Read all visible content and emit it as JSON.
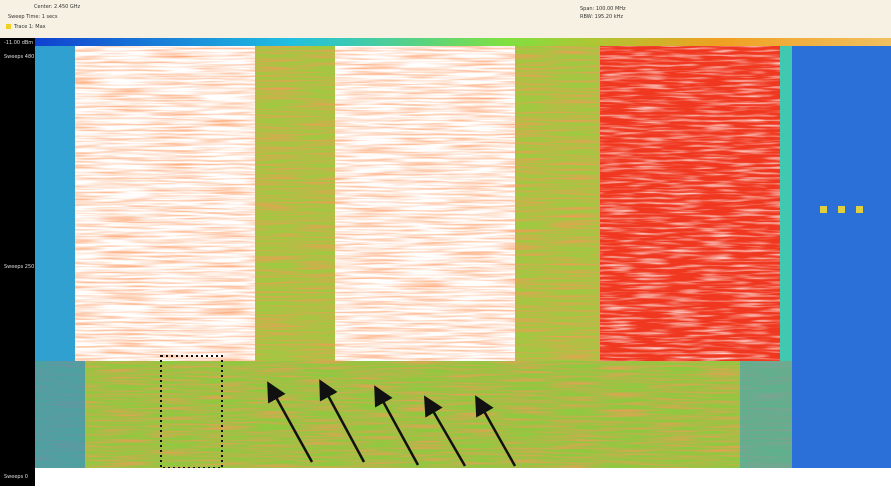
{
  "header": {
    "center": "Center: 2.450 GHz",
    "sweep_time": "Sweep Time: 1 secs",
    "trace": "Trace 1: Max",
    "span": "Span: 100.00 MHz",
    "rbw": "RBW: 195.20 kHz"
  },
  "left_axis": {
    "ref_level": "-11.00 dBm",
    "top": "Sweeps 480",
    "middle": "Sweeps 250",
    "bottom": "Sweeps 0"
  }
}
